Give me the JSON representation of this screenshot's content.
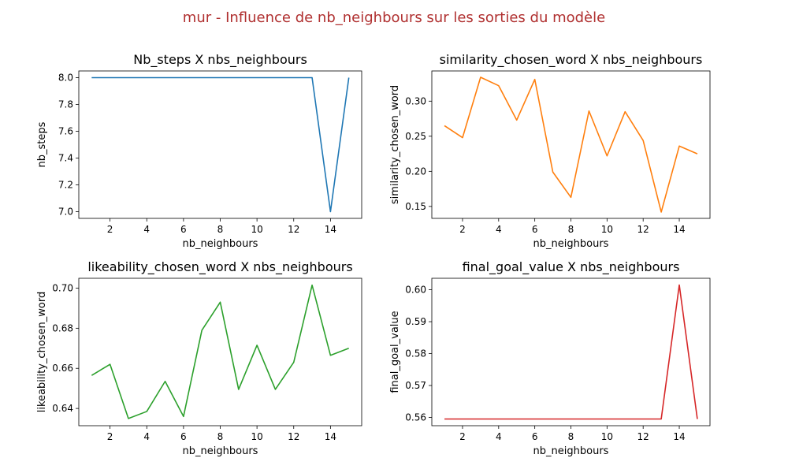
{
  "figure": {
    "suptitle": "mur - Influence de nb_neighbours sur les sorties du modèle",
    "suptitle_color": "#b03030"
  },
  "chart_data": [
    {
      "type": "line",
      "title": "Nb_steps X nbs_neighbours",
      "xlabel": "nb_neighbours",
      "ylabel": "nb_steps",
      "color": "#1f77b4",
      "x": [
        1,
        2,
        3,
        4,
        5,
        6,
        7,
        8,
        9,
        10,
        11,
        12,
        13,
        14,
        15
      ],
      "y": [
        8,
        8,
        8,
        8,
        8,
        8,
        8,
        8,
        8,
        8,
        8,
        8,
        8,
        7,
        8
      ],
      "xlim": [
        0.3,
        15.7
      ],
      "ylim": [
        6.95,
        8.05
      ],
      "xticks": [
        2,
        4,
        6,
        8,
        10,
        12,
        14
      ],
      "yticks": [
        7.0,
        7.2,
        7.4,
        7.6,
        7.8,
        8.0
      ],
      "ytick_labels": [
        "7.0",
        "7.2",
        "7.4",
        "7.6",
        "7.8",
        "8.0"
      ],
      "grid": false
    },
    {
      "type": "line",
      "title": "similarity_chosen_word X nbs_neighbours",
      "xlabel": "nb_neighbours",
      "ylabel": "similarity_chosen_word",
      "color": "#ff7f0e",
      "x": [
        1,
        2,
        3,
        4,
        5,
        6,
        7,
        8,
        9,
        10,
        11,
        12,
        13,
        14,
        15
      ],
      "y": [
        0.265,
        0.248,
        0.334,
        0.322,
        0.273,
        0.331,
        0.199,
        0.163,
        0.286,
        0.222,
        0.285,
        0.244,
        0.142,
        0.236,
        0.225
      ],
      "xlim": [
        0.3,
        15.7
      ],
      "ylim": [
        0.133,
        0.343
      ],
      "xticks": [
        2,
        4,
        6,
        8,
        10,
        12,
        14
      ],
      "yticks": [
        0.15,
        0.2,
        0.25,
        0.3
      ],
      "ytick_labels": [
        "0.15",
        "0.20",
        "0.25",
        "0.30"
      ],
      "grid": false
    },
    {
      "type": "line",
      "title": "likeability_chosen_word X nbs_neighbours",
      "xlabel": "nb_neighbours",
      "ylabel": "likeability_chosen_word",
      "color": "#2ca02c",
      "x": [
        1,
        2,
        3,
        4,
        5,
        6,
        7,
        8,
        9,
        10,
        11,
        12,
        13,
        14,
        15
      ],
      "y": [
        0.6565,
        0.662,
        0.635,
        0.6385,
        0.6535,
        0.636,
        0.679,
        0.693,
        0.6495,
        0.6715,
        0.6495,
        0.663,
        0.7015,
        0.6665,
        0.67
      ],
      "xlim": [
        0.3,
        15.7
      ],
      "ylim": [
        0.6314,
        0.7049
      ],
      "xticks": [
        2,
        4,
        6,
        8,
        10,
        12,
        14
      ],
      "yticks": [
        0.64,
        0.66,
        0.68,
        0.7
      ],
      "ytick_labels": [
        "0.64",
        "0.66",
        "0.68",
        "0.70"
      ],
      "grid": false
    },
    {
      "type": "line",
      "title": "final_goal_value X nbs_neighbours",
      "xlabel": "nb_neighbours",
      "ylabel": "final_goal_value",
      "color": "#d62728",
      "x": [
        1,
        2,
        3,
        4,
        5,
        6,
        7,
        8,
        9,
        10,
        11,
        12,
        13,
        14,
        15
      ],
      "y": [
        0.5595,
        0.5595,
        0.5595,
        0.5595,
        0.5595,
        0.5595,
        0.5595,
        0.5595,
        0.5595,
        0.5595,
        0.5595,
        0.5595,
        0.5595,
        0.6015,
        0.5595
      ],
      "xlim": [
        0.3,
        15.7
      ],
      "ylim": [
        0.5574,
        0.6036
      ],
      "xticks": [
        2,
        4,
        6,
        8,
        10,
        12,
        14
      ],
      "yticks": [
        0.56,
        0.57,
        0.58,
        0.59,
        0.6
      ],
      "ytick_labels": [
        "0.56",
        "0.57",
        "0.58",
        "0.59",
        "0.60"
      ],
      "grid": false
    }
  ]
}
